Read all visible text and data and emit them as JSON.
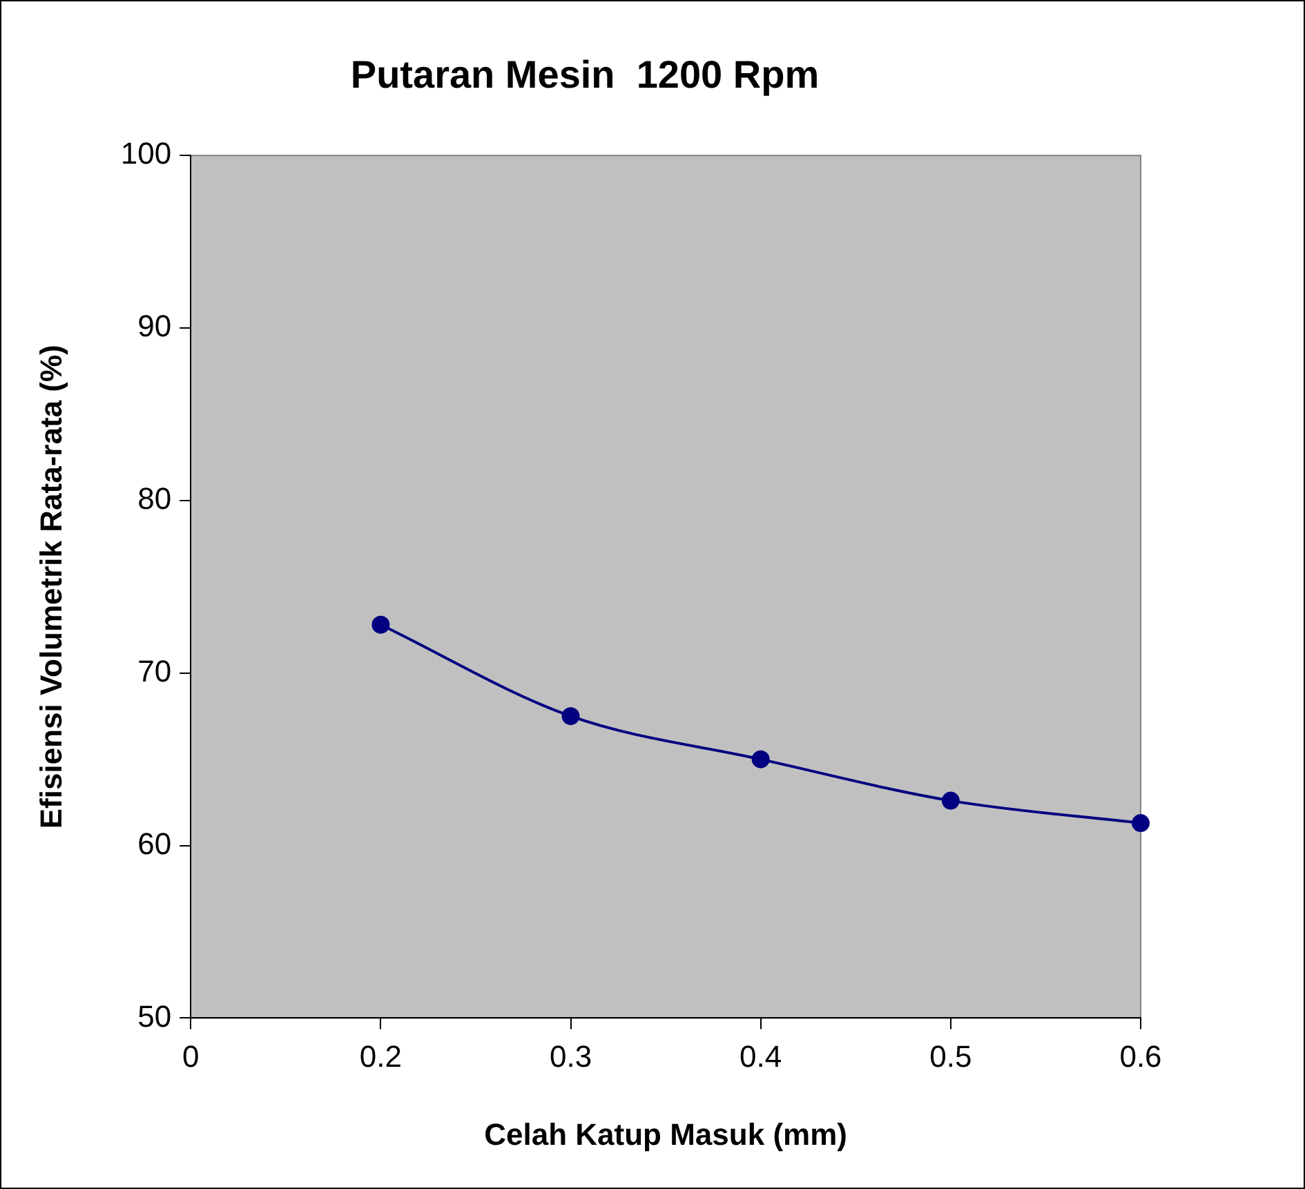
{
  "chart_data": {
    "type": "line",
    "title": "Putaran Mesin  1200 Rpm",
    "xlabel": "Celah Katup Masuk (mm)",
    "ylabel": "Efisiensi Volumetrik Rata-rata (%)",
    "categories": [
      "0",
      "0.2",
      "0.3",
      "0.4",
      "0.5",
      "0.6"
    ],
    "series": [
      {
        "color": "#000080",
        "values": [
          null,
          72.8,
          67.5,
          65.0,
          62.6,
          61.3
        ]
      }
    ],
    "ylim": [
      50,
      100
    ],
    "yticks": [
      50,
      60,
      70,
      80,
      90,
      100
    ],
    "grid": false,
    "legend": false,
    "marker": "circle",
    "line_style": "solid"
  }
}
